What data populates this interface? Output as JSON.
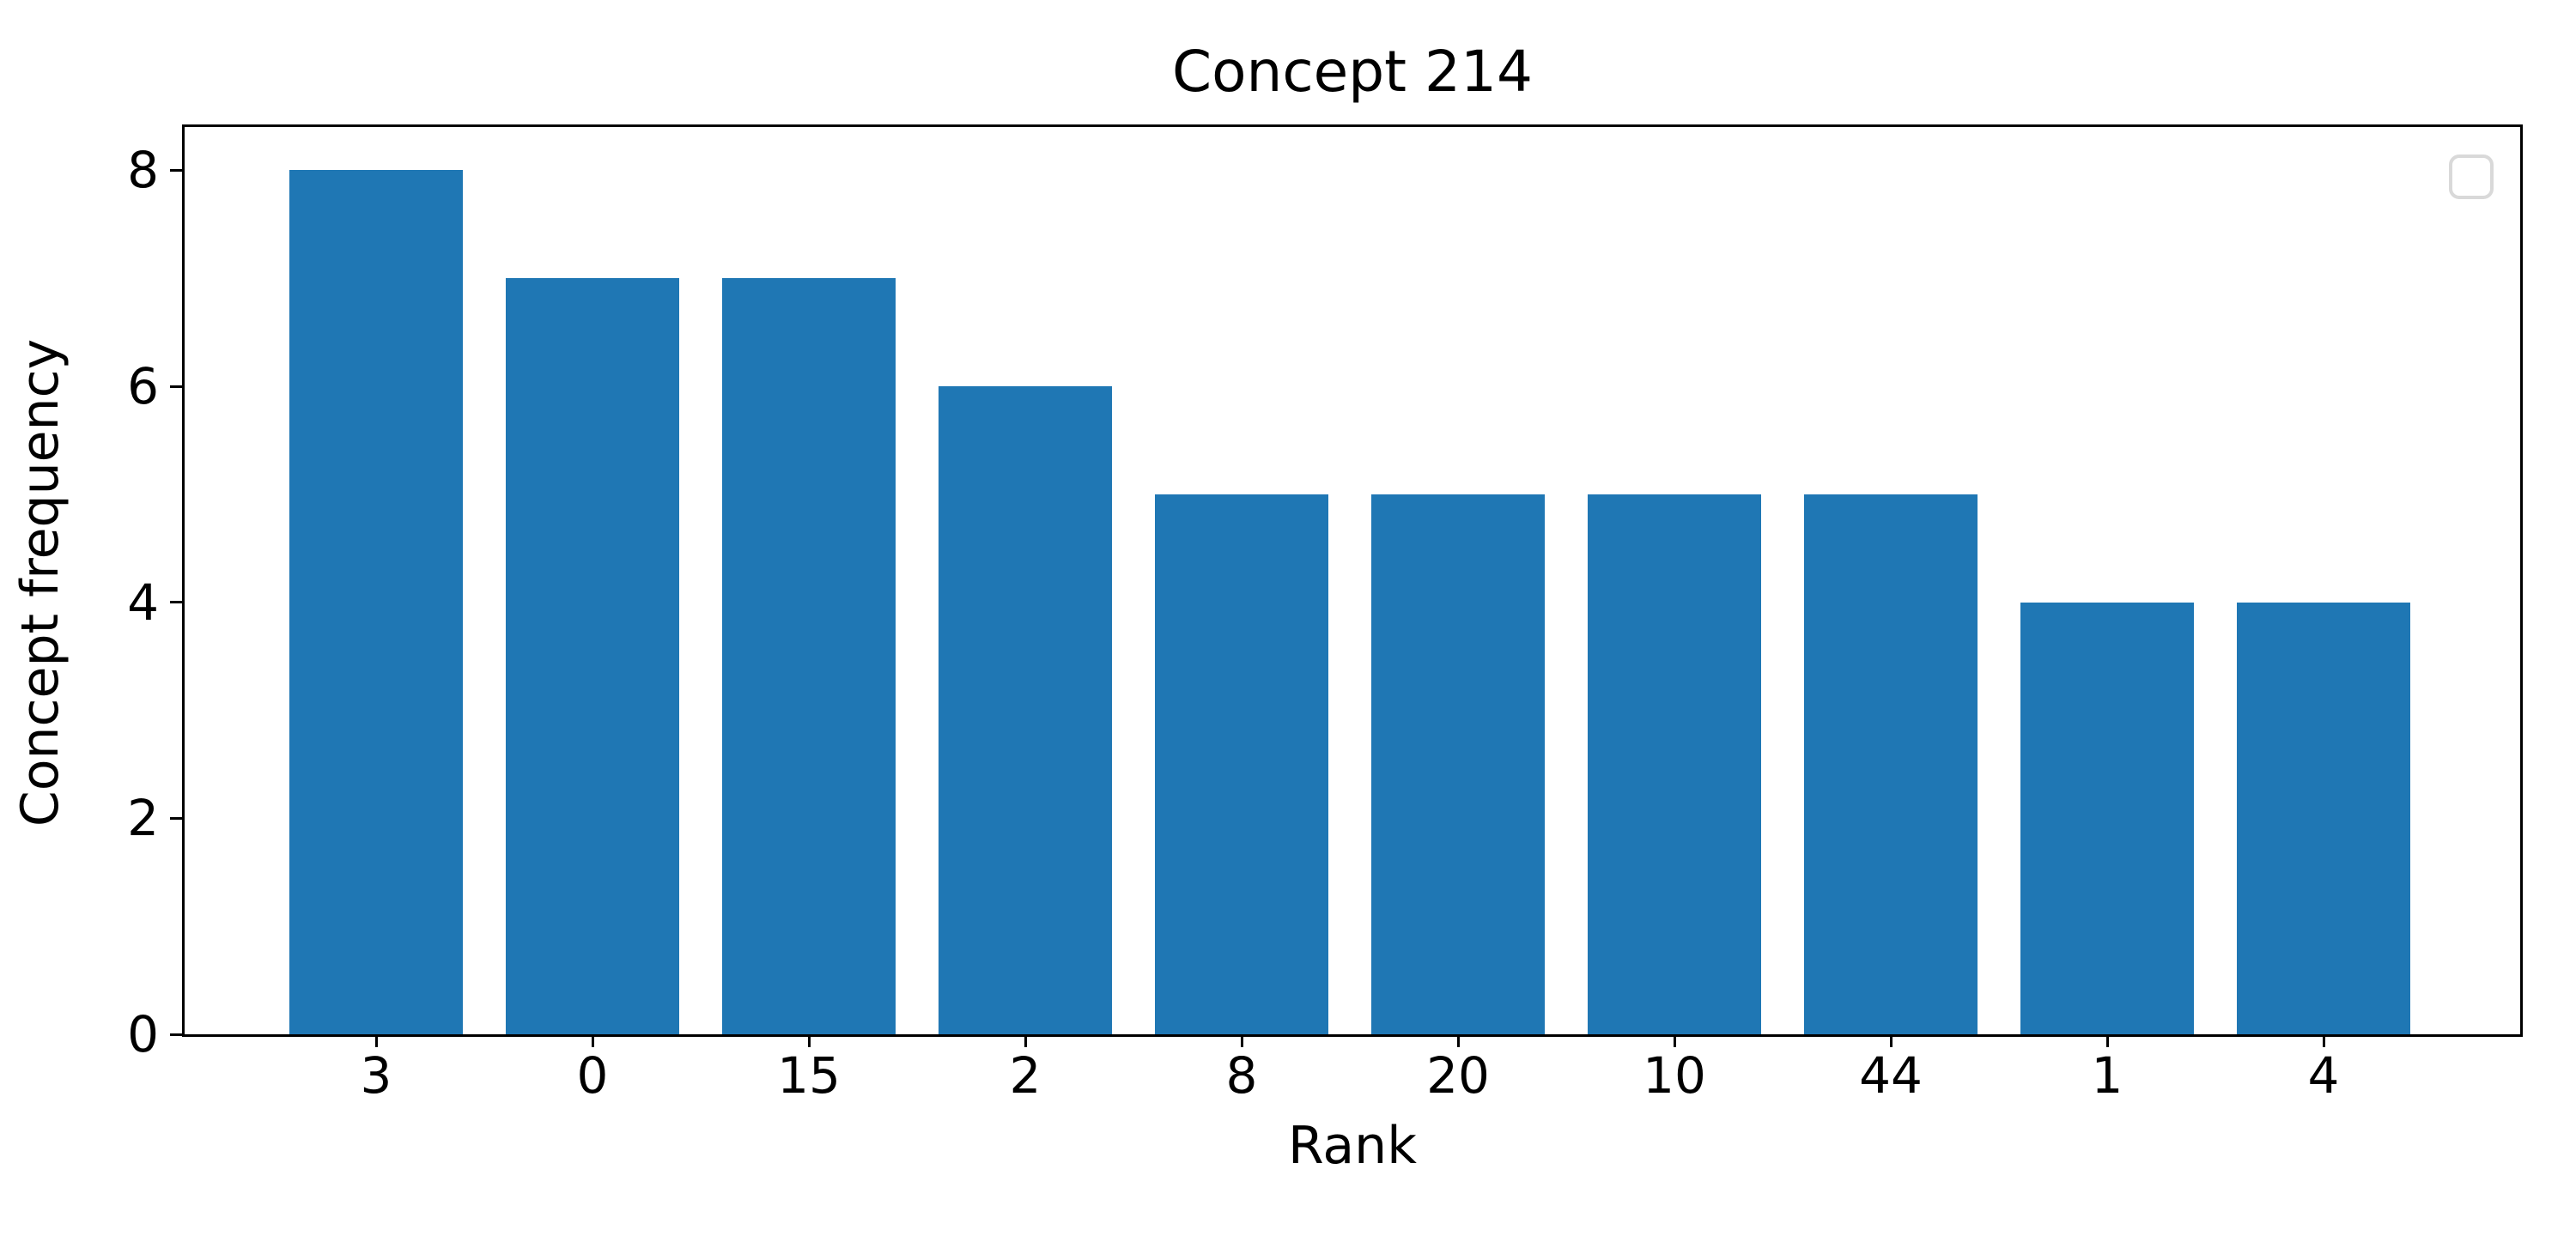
{
  "chart_data": {
    "type": "bar",
    "title": "Concept 214",
    "xlabel": "Rank",
    "ylabel": "Concept frequency",
    "categories": [
      "3",
      "0",
      "15",
      "2",
      "8",
      "20",
      "10",
      "44",
      "1",
      "4"
    ],
    "values": [
      8,
      7,
      7,
      6,
      5,
      5,
      5,
      5,
      4,
      4
    ],
    "yticks": [
      0,
      2,
      4,
      6,
      8
    ],
    "ylim": [
      0,
      8.4
    ],
    "bar_color": "#1f77b4",
    "grid": false,
    "legend": {
      "visible": true,
      "position": "upper right",
      "entries": []
    }
  }
}
